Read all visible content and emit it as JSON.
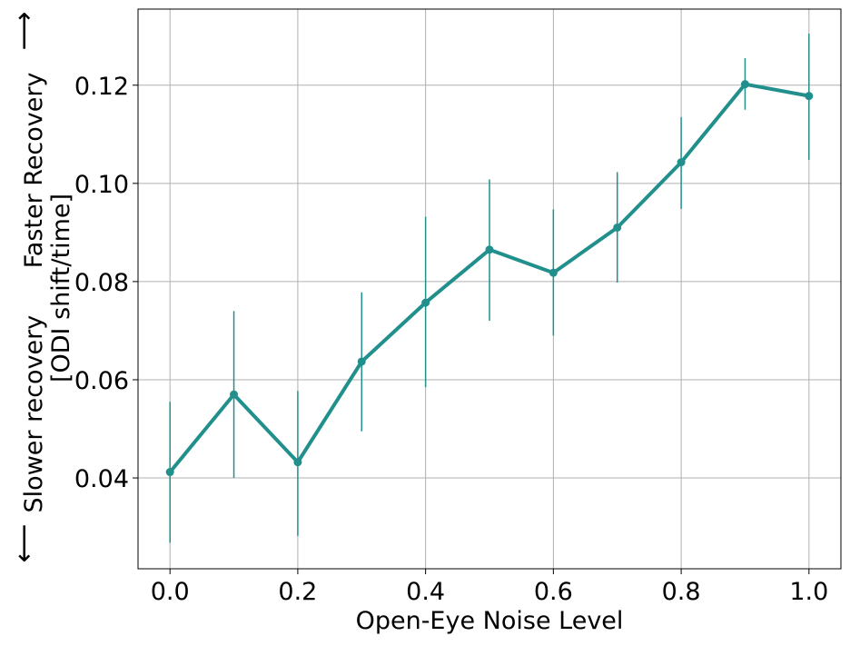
{
  "chart_data": {
    "type": "line",
    "title": "",
    "xlabel": "Open-Eye Noise Level",
    "ylabel_lines": [
      "Slower recovery      Faster Recovery",
      "[ODI shift/time]"
    ],
    "ylabel_arrow_low": "⟵",
    "ylabel_arrow_high": "⟶",
    "x": [
      0.0,
      0.1,
      0.2,
      0.3,
      0.4,
      0.5,
      0.6,
      0.7,
      0.8,
      0.9,
      1.0
    ],
    "series": [
      {
        "values": [
          0.0412,
          0.057,
          0.0432,
          0.0637,
          0.0757,
          0.0865,
          0.0818,
          0.091,
          0.1043,
          0.1202,
          0.1178
        ],
        "err_low": [
          0.0268,
          0.04,
          0.0282,
          0.0495,
          0.0585,
          0.072,
          0.069,
          0.0798,
          0.0948,
          0.115,
          0.1048
        ],
        "err_high": [
          0.0555,
          0.074,
          0.0577,
          0.0778,
          0.0932,
          0.1008,
          0.0947,
          0.1023,
          0.1135,
          0.1255,
          0.1305
        ],
        "color": "#21908c"
      }
    ],
    "xlim": [
      -0.05,
      1.05
    ],
    "ylim": [
      0.0215,
      0.1355
    ],
    "xticks": [
      0.0,
      0.2,
      0.4,
      0.6,
      0.8,
      1.0
    ],
    "xtick_labels": [
      "0.0",
      "0.2",
      "0.4",
      "0.6",
      "0.8",
      "1.0"
    ],
    "yticks": [
      0.04,
      0.06,
      0.08,
      0.1,
      0.12
    ],
    "ytick_labels": [
      "0.04",
      "0.06",
      "0.08",
      "0.10",
      "0.12"
    ],
    "grid": true,
    "grid_color": "#b0b0b0"
  }
}
